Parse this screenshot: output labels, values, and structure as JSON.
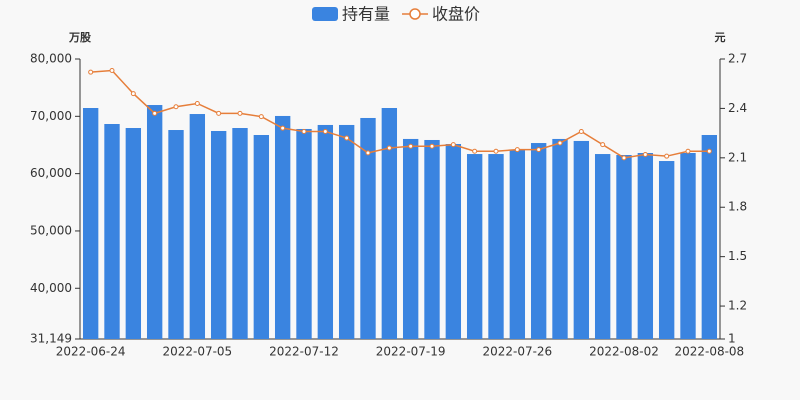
{
  "chart_data": {
    "type": "bar-line",
    "ylabel": "万股",
    "y2label": "元",
    "categories": [
      "2022-06-24",
      null,
      null,
      null,
      null,
      "2022-07-05",
      null,
      null,
      null,
      null,
      "2022-07-12",
      null,
      null,
      null,
      null,
      "2022-07-19",
      null,
      null,
      null,
      null,
      "2022-07-26",
      null,
      null,
      null,
      null,
      "2022-08-02",
      null,
      null,
      null,
      "2022-08-08"
    ],
    "series": [
      {
        "name": "持有量",
        "type": "bar",
        "color": "#3a84e0",
        "axis": "y",
        "values": [
          71450,
          68660,
          67960,
          71970,
          67610,
          70400,
          67440,
          67960,
          66740,
          70060,
          67790,
          68490,
          68490,
          69710,
          71450,
          66050,
          65870,
          65170,
          63420,
          63420,
          64120,
          65340,
          66050,
          65700,
          63420,
          63250,
          63600,
          62200,
          63600,
          66740
        ]
      },
      {
        "name": "收盘价",
        "type": "line",
        "color": "#e67e3a",
        "axis": "y2",
        "values": [
          2.62,
          2.63,
          2.49,
          2.37,
          2.41,
          2.43,
          2.37,
          2.37,
          2.35,
          2.28,
          2.26,
          2.26,
          2.22,
          2.13,
          2.16,
          2.17,
          2.17,
          2.18,
          2.14,
          2.14,
          2.15,
          2.15,
          2.19,
          2.26,
          2.18,
          2.1,
          2.12,
          2.11,
          2.14,
          2.14
        ]
      }
    ],
    "ylim": [
      31149,
      80000
    ],
    "yticks": [
      {
        "value": 31149,
        "label": "31,149"
      },
      {
        "value": 40000,
        "label": "40,000"
      },
      {
        "value": 50000,
        "label": "50,000"
      },
      {
        "value": 60000,
        "label": "60,000"
      },
      {
        "value": 70000,
        "label": "70,000"
      },
      {
        "value": 80000,
        "label": "80,000"
      }
    ],
    "y2lim": [
      1,
      2.7
    ],
    "y2ticks": [
      1,
      1.2,
      1.5,
      1.8,
      2.1,
      2.4,
      2.7
    ],
    "legend": "top"
  }
}
